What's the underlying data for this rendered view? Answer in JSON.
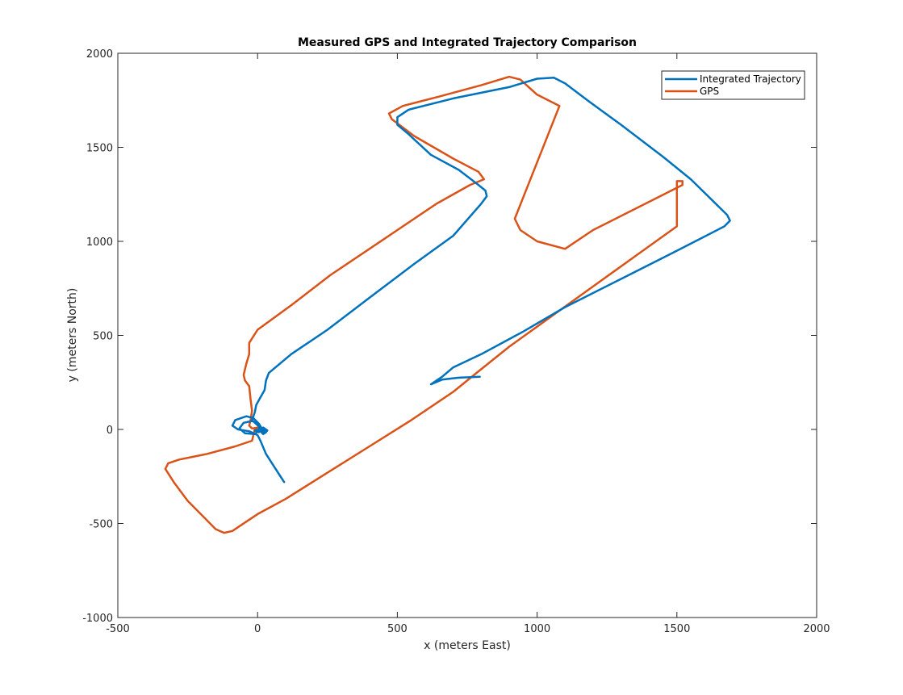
{
  "chart_data": {
    "type": "line",
    "title": "Measured GPS and Integrated Trajectory Comparison",
    "xlabel": "x (meters East)",
    "ylabel": "y (meters North)",
    "xlim": [
      -500,
      2000
    ],
    "ylim": [
      -1000,
      2000
    ],
    "xticks": [
      -500,
      0,
      500,
      1000,
      1500,
      2000
    ],
    "yticks": [
      -1000,
      -500,
      0,
      500,
      1000,
      1500,
      2000
    ],
    "xtick_labels": [
      "-500",
      "0",
      "500",
      "1000",
      "1500",
      "2000"
    ],
    "ytick_labels": [
      "-1000",
      "-500",
      "0",
      "500",
      "1000",
      "1500",
      "2000"
    ],
    "grid": false,
    "legend_position": "top-right",
    "series": [
      {
        "name": "Integrated Trajectory",
        "color": "#0072BD",
        "points": [
          [
            95,
            -280
          ],
          [
            60,
            -200
          ],
          [
            30,
            -130
          ],
          [
            10,
            -60
          ],
          [
            0,
            -30
          ],
          [
            -30,
            -10
          ],
          [
            -70,
            0
          ],
          [
            -90,
            20
          ],
          [
            -80,
            50
          ],
          [
            -40,
            70
          ],
          [
            -15,
            60
          ],
          [
            5,
            30
          ],
          [
            5,
            -5
          ],
          [
            -10,
            -25
          ],
          [
            -45,
            -20
          ],
          [
            -65,
            5
          ],
          [
            -50,
            35
          ],
          [
            -20,
            45
          ],
          [
            5,
            30
          ],
          [
            15,
            5
          ],
          [
            5,
            -15
          ],
          [
            -10,
            -5
          ],
          [
            10,
            0
          ],
          [
            25,
            -20
          ],
          [
            35,
            -5
          ],
          [
            20,
            10
          ],
          [
            10,
            -10
          ],
          [
            20,
            -25
          ],
          [
            30,
            -15
          ],
          [
            25,
            0
          ],
          [
            15,
            -5
          ],
          [
            20,
            -15
          ],
          [
            25,
            -10
          ],
          [
            20,
            -5
          ],
          [
            -20,
            50
          ],
          [
            -10,
            90
          ],
          [
            -5,
            130
          ],
          [
            10,
            170
          ],
          [
            25,
            210
          ],
          [
            30,
            260
          ],
          [
            40,
            300
          ],
          [
            120,
            400
          ],
          [
            250,
            530
          ],
          [
            400,
            700
          ],
          [
            560,
            880
          ],
          [
            700,
            1030
          ],
          [
            800,
            1200
          ],
          [
            820,
            1240
          ],
          [
            815,
            1270
          ],
          [
            790,
            1300
          ],
          [
            720,
            1380
          ],
          [
            620,
            1460
          ],
          [
            540,
            1570
          ],
          [
            500,
            1620
          ],
          [
            500,
            1660
          ],
          [
            540,
            1700
          ],
          [
            700,
            1760
          ],
          [
            900,
            1820
          ],
          [
            1000,
            1865
          ],
          [
            1060,
            1870
          ],
          [
            1100,
            1840
          ],
          [
            1180,
            1750
          ],
          [
            1300,
            1620
          ],
          [
            1450,
            1450
          ],
          [
            1550,
            1330
          ],
          [
            1680,
            1140
          ],
          [
            1690,
            1110
          ],
          [
            1670,
            1080
          ],
          [
            1500,
            950
          ],
          [
            1300,
            800
          ],
          [
            1100,
            650
          ],
          [
            950,
            520
          ],
          [
            800,
            400
          ],
          [
            700,
            330
          ],
          [
            660,
            280
          ],
          [
            640,
            260
          ],
          [
            620,
            240
          ],
          [
            660,
            265
          ],
          [
            720,
            275
          ],
          [
            795,
            280
          ]
        ]
      },
      {
        "name": "GPS",
        "color": "#D95319",
        "points": [
          [
            -330,
            -210
          ],
          [
            -300,
            -280
          ],
          [
            -250,
            -380
          ],
          [
            -190,
            -470
          ],
          [
            -150,
            -530
          ],
          [
            -120,
            -550
          ],
          [
            -90,
            -540
          ],
          [
            -60,
            -510
          ],
          [
            0,
            -450
          ],
          [
            100,
            -370
          ],
          [
            250,
            -230
          ],
          [
            400,
            -90
          ],
          [
            550,
            50
          ],
          [
            700,
            200
          ],
          [
            800,
            320
          ],
          [
            900,
            440
          ],
          [
            1050,
            600
          ],
          [
            1200,
            760
          ],
          [
            1350,
            920
          ],
          [
            1500,
            1080
          ],
          [
            1500,
            1320
          ],
          [
            1520,
            1320
          ],
          [
            1520,
            1300
          ],
          [
            1400,
            1210
          ],
          [
            1200,
            1060
          ],
          [
            1100,
            960
          ],
          [
            1000,
            1000
          ],
          [
            940,
            1060
          ],
          [
            920,
            1120
          ],
          [
            1080,
            1720
          ],
          [
            1000,
            1780
          ],
          [
            940,
            1860
          ],
          [
            900,
            1875
          ],
          [
            800,
            1830
          ],
          [
            650,
            1770
          ],
          [
            520,
            1720
          ],
          [
            470,
            1680
          ],
          [
            480,
            1650
          ],
          [
            560,
            1560
          ],
          [
            700,
            1440
          ],
          [
            790,
            1370
          ],
          [
            810,
            1330
          ],
          [
            760,
            1300
          ],
          [
            640,
            1200
          ],
          [
            520,
            1080
          ],
          [
            400,
            960
          ],
          [
            260,
            820
          ],
          [
            120,
            660
          ],
          [
            0,
            530
          ],
          [
            -30,
            460
          ],
          [
            -30,
            400
          ],
          [
            -40,
            350
          ],
          [
            -50,
            290
          ],
          [
            -45,
            260
          ],
          [
            -30,
            230
          ],
          [
            -25,
            160
          ],
          [
            -20,
            100
          ],
          [
            -25,
            50
          ],
          [
            -30,
            20
          ],
          [
            -20,
            5
          ],
          [
            0,
            10
          ],
          [
            -10,
            0
          ],
          [
            -20,
            -60
          ],
          [
            -80,
            -90
          ],
          [
            -180,
            -130
          ],
          [
            -280,
            -160
          ],
          [
            -320,
            -180
          ],
          [
            -330,
            -210
          ]
        ]
      }
    ]
  }
}
